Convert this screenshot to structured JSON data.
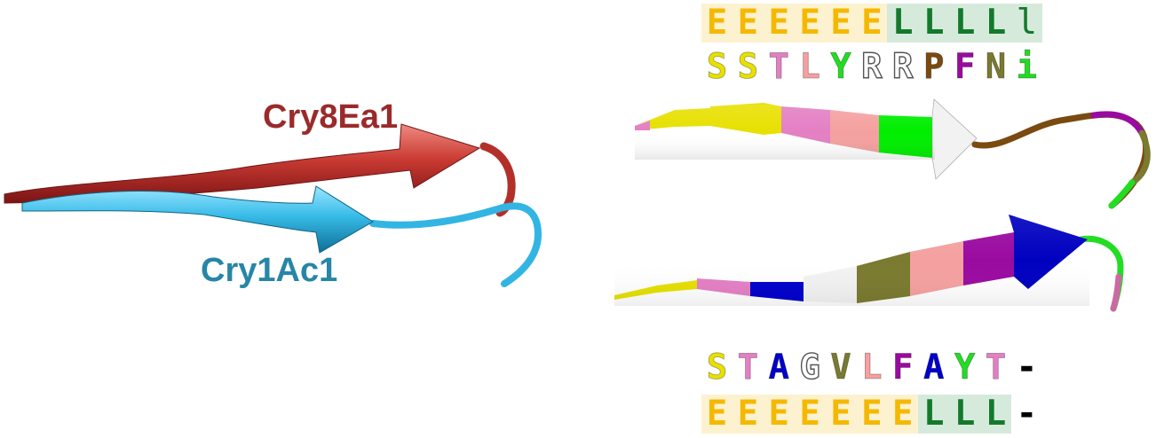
{
  "labels": {
    "cry8": "Cry8Ea1",
    "cry1": "Cry1Ac1"
  },
  "colors": {
    "cry8_ribbon": "#c4342f",
    "cry8_label": "#9b2a2a",
    "cry1_ribbon": "#35b8e6",
    "cry1_label": "#2786a6",
    "helix_E": "#f5b800",
    "loop_L": "#137a2b"
  },
  "top_alignment": {
    "ss": [
      "E",
      "E",
      "E",
      "E",
      "E",
      "E",
      "L",
      "L",
      "L",
      "L",
      "l"
    ],
    "seq": [
      "S",
      "S",
      "T",
      "L",
      "Y",
      "R",
      "R",
      "P",
      "F",
      "N",
      "i"
    ]
  },
  "bottom_alignment": {
    "seq": [
      "S",
      "T",
      "A",
      "G",
      "V",
      "L",
      "F",
      "A",
      "Y",
      "T",
      "-"
    ],
    "ss": [
      "E",
      "E",
      "E",
      "E",
      "E",
      "E",
      "E",
      "L",
      "L",
      "L",
      "-"
    ]
  },
  "residue_colors": {
    "S": "#e8e000",
    "T": "#e47fc4",
    "L": "#f5a0a0",
    "Y": "#22dd22",
    "R": "#ffffff",
    "P": "#7a4a10",
    "F": "#9a0aa0",
    "N": "#7a7a30",
    "i": "#22dd22",
    "A": "#0000cc",
    "G": "#ffffff",
    "V": "#7a7a30",
    "-": "#000000"
  },
  "icons": {
    "structure": "beta-hairpin-ribbon"
  }
}
